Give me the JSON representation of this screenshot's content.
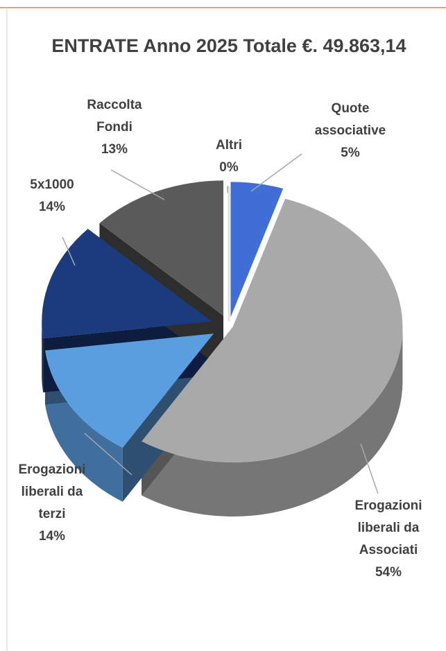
{
  "chart_data": {
    "type": "pie3d",
    "title": "ENTRATE Anno 2025 Totale €. 49.863,14",
    "categories": [
      "Quote\nassociative",
      "Erogazioni\nliberali da\nAssociati",
      "Erogazioni\nliberali da\nterzi",
      "5x1000",
      "Raccolta\nFondi",
      "Altri"
    ],
    "values": [
      5,
      54,
      14,
      14,
      13,
      0
    ],
    "value_labels": [
      "5%",
      "54%",
      "14%",
      "14%",
      "13%",
      "0%"
    ],
    "colors": [
      "#3f6fd6",
      "#a9a9a9",
      "#5b9ee0",
      "#1c3a7e",
      "#5a5a5a",
      "#8c8c8c"
    ]
  }
}
